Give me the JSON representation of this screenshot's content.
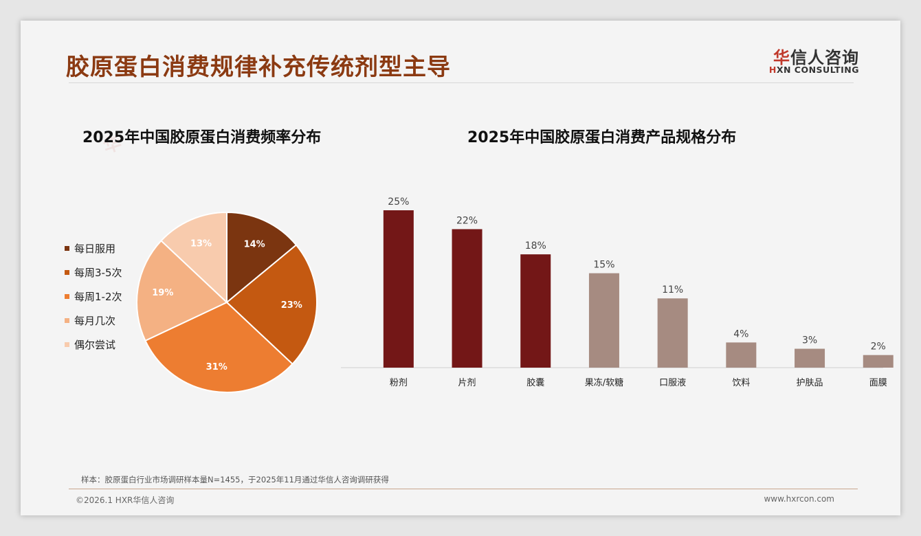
{
  "page": {
    "title": "胶原蛋白消费规律补充传统剂型主导",
    "logo": {
      "cn_first": "华",
      "cn_rest": "信人咨询",
      "en_first": "H",
      "en_rest": "XN CONSULTING"
    },
    "note": "样本：胶原蛋白行业市场调研样本量N=1455，于2025年11月通过华信人咨询调研获得",
    "copyright": "©2026.1 HXR华信人咨询",
    "website": "www.hxrcon.com"
  },
  "chart_data": [
    {
      "type": "pie",
      "title": "2025年中国胶原蛋白消费频率分布",
      "categories": [
        "每日服用",
        "每周3-5次",
        "每周1-2次",
        "每月几次",
        "偶尔尝试"
      ],
      "values": [
        14,
        23,
        31,
        19,
        13
      ],
      "labels": [
        "14%",
        "23%",
        "31%",
        "19%",
        "13%"
      ],
      "colors": [
        "#7b3510",
        "#c45911",
        "#ed7d31",
        "#f4b183",
        "#f8cbad"
      ],
      "legend_position": "left"
    },
    {
      "type": "bar",
      "title": "2025年中国胶原蛋白消费产品规格分布",
      "categories": [
        "粉剂",
        "片剂",
        "胶囊",
        "果冻/软糖",
        "口服液",
        "饮料",
        "护肤品",
        "面膜"
      ],
      "values": [
        25,
        22,
        18,
        15,
        11,
        4,
        3,
        2
      ],
      "labels": [
        "25%",
        "22%",
        "18%",
        "15%",
        "11%",
        "4%",
        "3%",
        "2%"
      ],
      "colors": [
        "#731717",
        "#731717",
        "#731717",
        "#a68b81",
        "#a68b81",
        "#a68b81",
        "#a68b81",
        "#a68b81"
      ],
      "ylim": [
        0,
        25
      ],
      "grid": false
    }
  ]
}
